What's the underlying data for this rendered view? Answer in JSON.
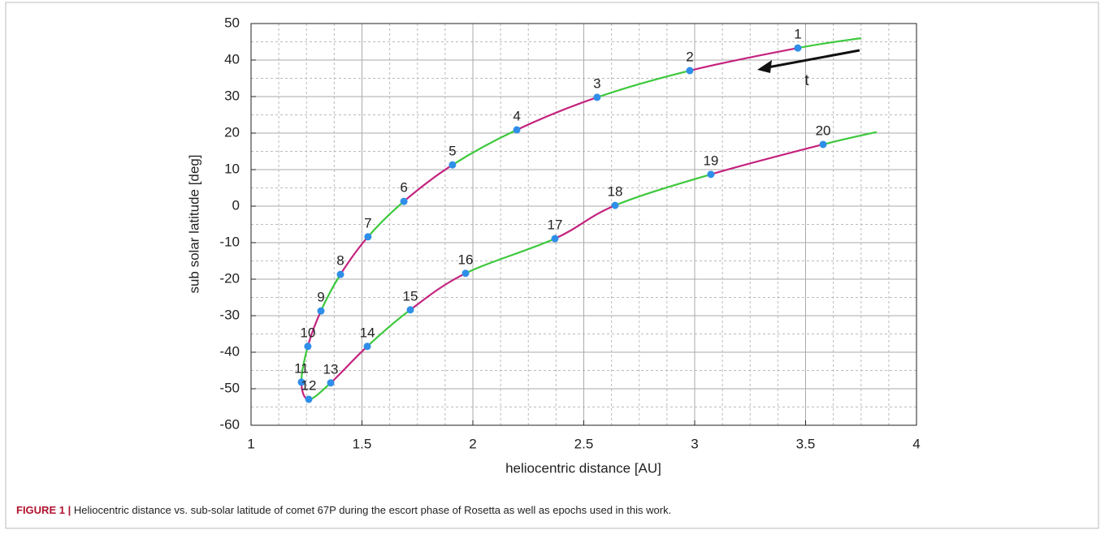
{
  "chart_data": {
    "type": "line",
    "xlabel": "heliocentric distance [AU]",
    "ylabel": "sub solar latitude [deg]",
    "xlim": [
      1,
      4
    ],
    "xticks": [
      1,
      1.5,
      2,
      2.5,
      3,
      3.5,
      4
    ],
    "ylim": [
      -60,
      50
    ],
    "yticks": [
      -60,
      -50,
      -40,
      -30,
      -20,
      -10,
      0,
      10,
      20,
      30,
      40,
      50
    ],
    "grid": true,
    "x_minor_divisions": 4,
    "y_minor_divisions": 2,
    "curve": {
      "segment_colors": [
        "#3cc83c",
        "#c4237f"
      ],
      "x": [
        3.75,
        3.465,
        2.978,
        2.56,
        2.198,
        1.908,
        1.689,
        1.527,
        1.403,
        1.315,
        1.256,
        1.227,
        1.26,
        1.359,
        1.524,
        1.718,
        1.967,
        2.37,
        2.641,
        3.073,
        3.579,
        3.82
      ],
      "y": [
        46,
        43.3,
        37.1,
        29.8,
        20.9,
        11.3,
        1.3,
        -8.4,
        -18.7,
        -28.7,
        -38.4,
        -48.2,
        -52.9,
        -48.4,
        -38.4,
        -28.4,
        -18.4,
        -8.9,
        0.2,
        8.7,
        16.9,
        20.3
      ]
    },
    "epochs": {
      "color": "#2f8fe8",
      "labels": [
        "1",
        "2",
        "3",
        "4",
        "5",
        "6",
        "7",
        "8",
        "9",
        "10",
        "11",
        "12",
        "13",
        "14",
        "15",
        "16",
        "17",
        "18",
        "19",
        "20"
      ],
      "x": [
        3.465,
        2.978,
        2.56,
        2.198,
        1.908,
        1.689,
        1.527,
        1.403,
        1.315,
        1.256,
        1.227,
        1.26,
        1.359,
        1.524,
        1.718,
        1.967,
        2.37,
        2.641,
        3.073,
        3.579
      ],
      "y": [
        43.3,
        37.1,
        29.8,
        20.9,
        11.3,
        1.3,
        -8.4,
        -18.7,
        -28.7,
        -38.4,
        -48.2,
        -52.9,
        -48.4,
        -38.4,
        -28.4,
        -18.4,
        -8.9,
        0.2,
        8.7,
        16.9
      ]
    },
    "annotation": "t"
  },
  "caption": {
    "label": "FIGURE 1 |",
    "text": "Heliocentric distance vs. sub-solar latitude of comet 67P during the escort phase of Rosetta as well as epochs used in this work."
  }
}
